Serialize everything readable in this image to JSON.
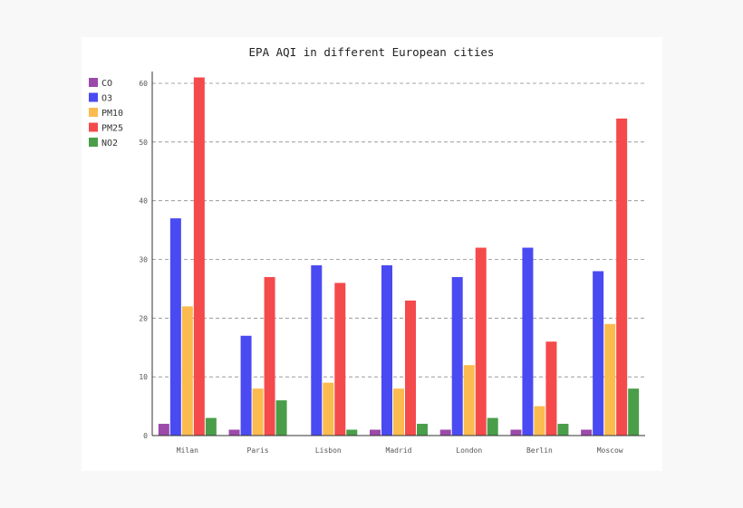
{
  "chart_data": {
    "type": "bar",
    "title": "EPA AQI in different European cities",
    "xlabel": "",
    "ylabel": "",
    "categories": [
      "Milan",
      "Paris",
      "Lisbon",
      "Madrid",
      "London",
      "Berlin",
      "Moscow"
    ],
    "series": [
      {
        "name": "CO",
        "color": "#9b4aa9",
        "values": [
          2,
          1,
          0,
          1,
          1,
          1,
          1
        ]
      },
      {
        "name": "O3",
        "color": "#4a4af2",
        "values": [
          37,
          17,
          29,
          29,
          27,
          32,
          28
        ]
      },
      {
        "name": "PM10",
        "color": "#fbbb4e",
        "values": [
          22,
          8,
          9,
          8,
          12,
          5,
          19
        ]
      },
      {
        "name": "PM25",
        "color": "#f44a4c",
        "values": [
          61,
          27,
          26,
          23,
          32,
          16,
          54
        ]
      },
      {
        "name": "NO2",
        "color": "#4a9e4a",
        "values": [
          3,
          6,
          1,
          2,
          3,
          2,
          8
        ]
      }
    ],
    "ylim": [
      0,
      60
    ],
    "yticks": [
      0,
      10,
      20,
      30,
      40,
      50,
      60
    ],
    "grid": "dashed horizontal",
    "legend": "top-left"
  }
}
